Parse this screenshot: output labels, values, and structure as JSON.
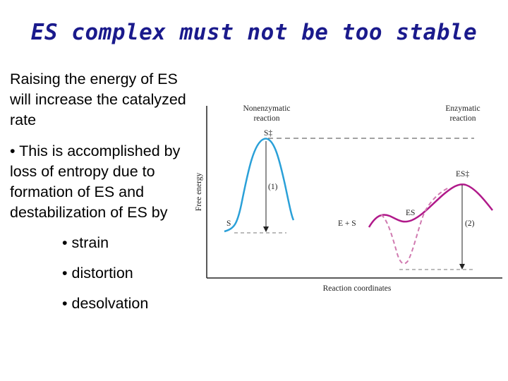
{
  "title": "ES complex must not be too stable",
  "paragraph1": "Raising the energy of ES will increase the catalyzed rate",
  "paragraph2": "• This is accomplished by loss of entropy due to formation of ES and destabilization of ES by",
  "bullets": [
    "• strain",
    "• distortion",
    "• desolvation"
  ],
  "diagram": {
    "nonenzymatic_line1": "Nonenzymatic",
    "nonenzymatic_line2": "reaction",
    "enzymatic_line1": "Enzymatic",
    "enzymatic_line2": "reaction",
    "ylabel": "Free energy",
    "xlabel": "Reaction coordinates",
    "s_ts_label": "S‡",
    "s_label": "S",
    "arrow1_label": "(1)",
    "es_ts_label": "ES‡",
    "es_label": "ES",
    "e_s_label": "E + S",
    "arrow2_label": "(2)",
    "colors": {
      "curve": "#2aa0d8",
      "enzyme_curve": "#b0198a",
      "dashed_curve": "#d07ab0"
    }
  }
}
